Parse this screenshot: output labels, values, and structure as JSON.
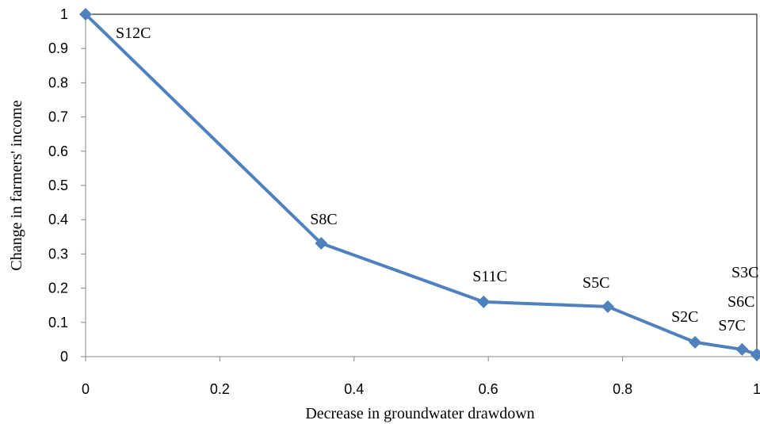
{
  "chart_data": {
    "type": "line",
    "x_label": "Decrease in groundwater drawdown",
    "y_label": "Change in farmers' income",
    "x": [
      0,
      0.351,
      0.593,
      0.778,
      0.908,
      0.978,
      1,
      1
    ],
    "series": [
      {
        "color": "#4f81bd",
        "values": [
          1,
          0.331,
          0.16,
          0.146,
          0.042,
          0.021,
          0.007,
          0.005
        ]
      }
    ],
    "point_labels": [
      "S12C",
      "S8C",
      "S11C",
      "S5C",
      "S2C",
      "S7C",
      "S6C",
      "S3C"
    ],
    "xlim": [
      0,
      1
    ],
    "ylim": [
      0,
      1
    ],
    "xticks": [
      0,
      0.2,
      0.4,
      0.6,
      0.8,
      1
    ],
    "yticks": [
      0,
      0.1,
      0.2,
      0.3,
      0.4,
      0.5,
      0.6,
      0.7,
      0.8,
      0.9,
      1
    ]
  }
}
